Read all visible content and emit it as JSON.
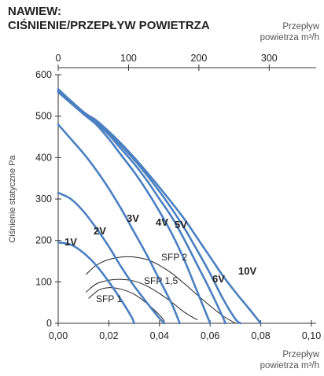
{
  "header": {
    "title_line1": "NAWIEW:",
    "title_line2": "CIŚNIENIE/PRZEPŁYW POWIETRZA",
    "top_unit_line1": "Przepływ",
    "top_unit_line2": "powietrza m³/h",
    "bottom_unit_line1": "Przepływ",
    "bottom_unit_line2": "powietrza m³/h"
  },
  "chart_data": {
    "type": "line",
    "xlabel": "",
    "ylabel": "Ciśnienie statyczne Pa",
    "xlim": [
      0,
      0.1
    ],
    "ylim": [
      0,
      600
    ],
    "x_ticks": [
      0,
      0.02,
      0.04,
      0.06,
      0.08,
      0.1
    ],
    "x_tick_labels": [
      "0,00",
      "0,02",
      "0,04",
      "0,06",
      "0,08",
      "0,10"
    ],
    "y_ticks": [
      0,
      100,
      200,
      300,
      400,
      500,
      600
    ],
    "y_tick_labels": [
      "0",
      "100",
      "200",
      "300",
      "400",
      "500",
      "600"
    ],
    "x2_ticks": [
      0,
      100,
      200,
      300
    ],
    "x2_tick_labels": [
      "0",
      "100",
      "200",
      "300"
    ],
    "x2_per_x": 3600,
    "grid": false,
    "fan_color": "#4a7fc0",
    "sfp_color": "#222222",
    "series": [
      {
        "name": "1V",
        "points": [
          [
            0,
            195
          ],
          [
            0.005,
            190
          ],
          [
            0.01,
            170
          ],
          [
            0.015,
            140
          ],
          [
            0.02,
            100
          ],
          [
            0.025,
            55
          ],
          [
            0.029,
            15
          ],
          [
            0.03,
            0
          ]
        ]
      },
      {
        "name": "2V",
        "points": [
          [
            0,
            315
          ],
          [
            0.005,
            300
          ],
          [
            0.01,
            270
          ],
          [
            0.015,
            230
          ],
          [
            0.02,
            185
          ],
          [
            0.025,
            135
          ],
          [
            0.03,
            90
          ],
          [
            0.035,
            50
          ],
          [
            0.04,
            12
          ],
          [
            0.042,
            0
          ]
        ]
      },
      {
        "name": "3V",
        "points": [
          [
            0,
            480
          ],
          [
            0.005,
            445
          ],
          [
            0.01,
            410
          ],
          [
            0.015,
            370
          ],
          [
            0.02,
            325
          ],
          [
            0.025,
            275
          ],
          [
            0.03,
            220
          ],
          [
            0.035,
            165
          ],
          [
            0.04,
            105
          ],
          [
            0.045,
            45
          ],
          [
            0.048,
            0
          ]
        ]
      },
      {
        "name": "4V",
        "points": [
          [
            0,
            558
          ],
          [
            0.01,
            505
          ],
          [
            0.015,
            480
          ],
          [
            0.02,
            445
          ],
          [
            0.025,
            405
          ],
          [
            0.03,
            365
          ],
          [
            0.035,
            320
          ],
          [
            0.04,
            270
          ],
          [
            0.045,
            215
          ],
          [
            0.05,
            150
          ],
          [
            0.055,
            75
          ],
          [
            0.06,
            0
          ]
        ]
      },
      {
        "name": "5V",
        "points": [
          [
            0,
            560
          ],
          [
            0.01,
            507
          ],
          [
            0.015,
            485
          ],
          [
            0.02,
            455
          ],
          [
            0.025,
            420
          ],
          [
            0.03,
            385
          ],
          [
            0.035,
            345
          ],
          [
            0.04,
            300
          ],
          [
            0.045,
            255
          ],
          [
            0.05,
            200
          ],
          [
            0.055,
            140
          ],
          [
            0.06,
            80
          ],
          [
            0.065,
            15
          ],
          [
            0.066,
            0
          ]
        ]
      },
      {
        "name": "6V",
        "points": [
          [
            0,
            563
          ],
          [
            0.01,
            508
          ],
          [
            0.015,
            488
          ],
          [
            0.02,
            460
          ],
          [
            0.025,
            428
          ],
          [
            0.03,
            395
          ],
          [
            0.035,
            358
          ],
          [
            0.04,
            318
          ],
          [
            0.045,
            275
          ],
          [
            0.05,
            228
          ],
          [
            0.055,
            175
          ],
          [
            0.06,
            120
          ],
          [
            0.065,
            60
          ],
          [
            0.07,
            10
          ],
          [
            0.072,
            0
          ]
        ]
      },
      {
        "name": "10V",
        "points": [
          [
            0,
            565
          ],
          [
            0.01,
            510
          ],
          [
            0.015,
            490
          ],
          [
            0.02,
            463
          ],
          [
            0.025,
            433
          ],
          [
            0.03,
            400
          ],
          [
            0.035,
            365
          ],
          [
            0.04,
            328
          ],
          [
            0.045,
            290
          ],
          [
            0.05,
            250
          ],
          [
            0.055,
            205
          ],
          [
            0.06,
            160
          ],
          [
            0.065,
            115
          ],
          [
            0.07,
            75
          ],
          [
            0.075,
            38
          ],
          [
            0.08,
            0
          ]
        ]
      }
    ],
    "sfp_curves": [
      {
        "name": "SFP 1",
        "points": [
          [
            0.012,
            60
          ],
          [
            0.016,
            80
          ],
          [
            0.02,
            86
          ],
          [
            0.025,
            82
          ],
          [
            0.03,
            70
          ],
          [
            0.035,
            48
          ],
          [
            0.04,
            20
          ],
          [
            0.042,
            5
          ]
        ]
      },
      {
        "name": "SFP 1,5",
        "points": [
          [
            0.011,
            75
          ],
          [
            0.015,
            95
          ],
          [
            0.02,
            104
          ],
          [
            0.025,
            106
          ],
          [
            0.03,
            102
          ],
          [
            0.035,
            90
          ],
          [
            0.04,
            72
          ],
          [
            0.045,
            50
          ],
          [
            0.05,
            26
          ],
          [
            0.055,
            8
          ]
        ]
      },
      {
        "name": "SFP 2",
        "points": [
          [
            0.011,
            118
          ],
          [
            0.015,
            140
          ],
          [
            0.02,
            154
          ],
          [
            0.025,
            160
          ],
          [
            0.03,
            160
          ],
          [
            0.035,
            154
          ],
          [
            0.04,
            140
          ],
          [
            0.045,
            120
          ],
          [
            0.05,
            95
          ],
          [
            0.055,
            68
          ],
          [
            0.06,
            42
          ],
          [
            0.065,
            18
          ],
          [
            0.07,
            0
          ]
        ]
      }
    ]
  }
}
